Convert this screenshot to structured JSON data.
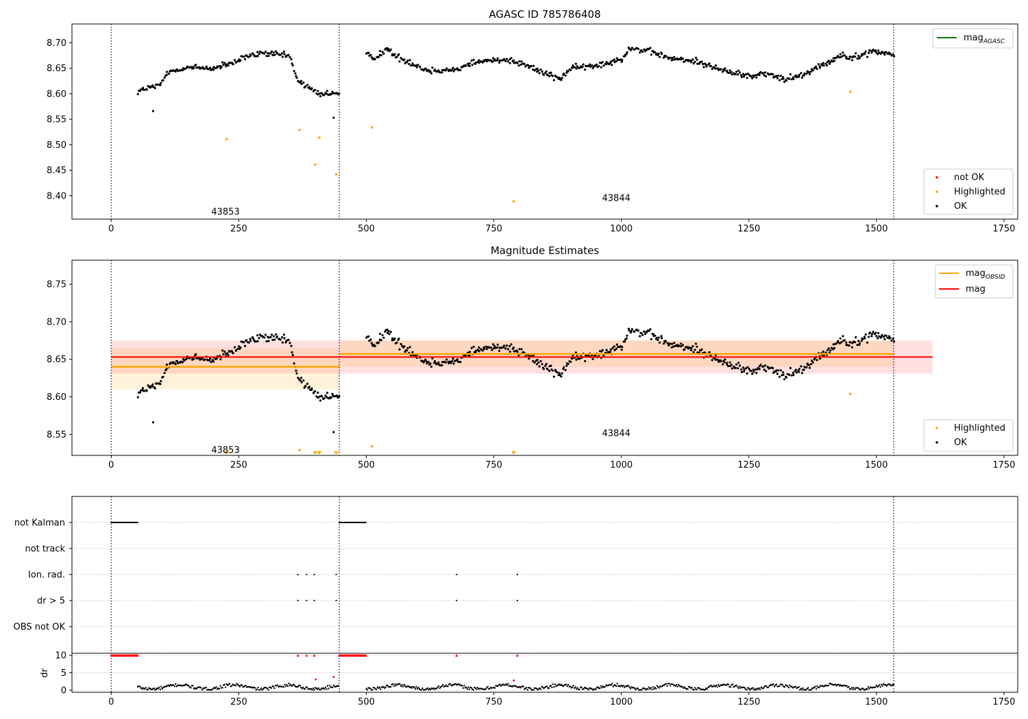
{
  "colors": {
    "ok": "#000000",
    "not_ok": "#ff0000",
    "highlighted": "#ffa500",
    "agasc_line": "#008000",
    "obsid_line": "#ffa500",
    "mag_line": "#ff0000",
    "obs_boundary": "#800080",
    "obsid_band": "#ffa500",
    "mag_band": "#ff0000",
    "flag_grid": "#b0b0b0"
  },
  "chart_data": [
    {
      "type": "scatter",
      "title": "AGASC ID 785786408",
      "xlim": [
        -77,
        1777
      ],
      "ylim": [
        8.354,
        8.737
      ],
      "xticks": [
        0,
        250,
        500,
        750,
        1000,
        1250,
        1500,
        1750
      ],
      "yticks": [
        8.4,
        8.45,
        8.5,
        8.55,
        8.6,
        8.65,
        8.7
      ],
      "ytick_labels": [
        "8.40",
        "8.45",
        "8.50",
        "8.55",
        "8.60",
        "8.65",
        "8.70"
      ],
      "obs_boundaries": [
        0,
        447,
        1534
      ],
      "obs_labels": [
        {
          "text": "43853",
          "x": 224,
          "y": 8.368
        },
        {
          "text": "43844",
          "x": 990,
          "y": 8.395
        }
      ],
      "legend_lines": [
        {
          "label": "mag",
          "sub": "AGASC",
          "color_key": "agasc_line"
        }
      ],
      "legend_markers": [
        {
          "label": "not OK",
          "color_key": "not_ok"
        },
        {
          "label": "Highlighted",
          "color_key": "highlighted"
        },
        {
          "label": "OK",
          "color_key": "ok"
        }
      ],
      "highlighted_points": [
        [
          226,
          8.511
        ],
        [
          369,
          8.529
        ],
        [
          400,
          8.461
        ],
        [
          408,
          8.514
        ],
        [
          441,
          8.442
        ],
        [
          511,
          8.534
        ],
        [
          789,
          8.389
        ],
        [
          1449,
          8.604
        ]
      ],
      "outlier_points": [
        [
          82,
          8.566
        ],
        [
          436,
          8.553
        ]
      ],
      "ok_series": [
        {
          "x0": 52,
          "x1": 447,
          "step": 2,
          "noise": 0.006,
          "knots": [
            [
              52,
              8.605
            ],
            [
              75,
              8.612
            ],
            [
              95,
              8.615
            ],
            [
              110,
              8.642
            ],
            [
              150,
              8.652
            ],
            [
              200,
              8.65
            ],
            [
              240,
              8.66
            ],
            [
              262,
              8.672
            ],
            [
              300,
              8.68
            ],
            [
              350,
              8.674
            ],
            [
              362,
              8.632
            ],
            [
              385,
              8.612
            ],
            [
              410,
              8.6
            ],
            [
              447,
              8.6
            ]
          ]
        },
        {
          "x0": 500,
          "x1": 1534,
          "step": 2,
          "noise": 0.006,
          "knots": [
            [
              500,
              8.678
            ],
            [
              515,
              8.67
            ],
            [
              540,
              8.688
            ],
            [
              560,
              8.672
            ],
            [
              590,
              8.66
            ],
            [
              620,
              8.645
            ],
            [
              680,
              8.648
            ],
            [
              710,
              8.662
            ],
            [
              770,
              8.668
            ],
            [
              800,
              8.662
            ],
            [
              850,
              8.64
            ],
            [
              880,
              8.63
            ],
            [
              900,
              8.65
            ],
            [
              950,
              8.655
            ],
            [
              1000,
              8.668
            ],
            [
              1015,
              8.69
            ],
            [
              1060,
              8.682
            ],
            [
              1100,
              8.668
            ],
            [
              1150,
              8.664
            ],
            [
              1200,
              8.645
            ],
            [
              1250,
              8.635
            ],
            [
              1280,
              8.64
            ],
            [
              1320,
              8.628
            ],
            [
              1360,
              8.64
            ],
            [
              1400,
              8.66
            ],
            [
              1430,
              8.675
            ],
            [
              1470,
              8.672
            ],
            [
              1490,
              8.685
            ],
            [
              1534,
              8.675
            ]
          ]
        }
      ]
    },
    {
      "type": "scatter",
      "title": "Magnitude Estimates",
      "xlim": [
        -77,
        1777
      ],
      "ylim": [
        8.522,
        8.782
      ],
      "xticks": [
        0,
        250,
        500,
        750,
        1000,
        1250,
        1500,
        1750
      ],
      "yticks": [
        8.55,
        8.6,
        8.65,
        8.7,
        8.75
      ],
      "ytick_labels": [
        "8.55",
        "8.60",
        "8.65",
        "8.70",
        "8.75"
      ],
      "obs_boundaries": [
        0,
        447,
        1534
      ],
      "obs_labels": [
        {
          "text": "43853",
          "x": 224,
          "y": 8.529
        },
        {
          "text": "43844",
          "x": 990,
          "y": 8.551
        }
      ],
      "legend_lines": [
        {
          "label": "mag",
          "sub": "OBSID",
          "color_key": "obsid_line"
        },
        {
          "label": "mag",
          "sub": "",
          "color_key": "mag_line"
        }
      ],
      "legend_markers": [
        {
          "label": "Highlighted",
          "color_key": "highlighted"
        },
        {
          "label": "OK",
          "color_key": "ok"
        }
      ],
      "obsid_mag": [
        {
          "x0": 0,
          "x1": 447,
          "mag": 8.64,
          "lo": 8.61,
          "hi": 8.665
        },
        {
          "x0": 447,
          "x1": 1534,
          "mag": 8.657,
          "lo": 8.64,
          "hi": 8.675
        }
      ],
      "mag": {
        "x0": 0,
        "x1": 1610,
        "mag": 8.653,
        "lo": 8.631,
        "hi": 8.675
      },
      "highlighted_points": [
        [
          369,
          8.529
        ],
        [
          511,
          8.534
        ],
        [
          1449,
          8.604
        ]
      ],
      "offscale_points": [
        226,
        400,
        408,
        441,
        789
      ],
      "outlier_points": [
        [
          82,
          8.566
        ],
        [
          436,
          8.553
        ]
      ],
      "ok_series": [
        {
          "x0": 52,
          "x1": 447,
          "step": 2,
          "noise": 0.006,
          "knots": [
            [
              52,
              8.605
            ],
            [
              75,
              8.612
            ],
            [
              95,
              8.615
            ],
            [
              110,
              8.642
            ],
            [
              150,
              8.652
            ],
            [
              200,
              8.65
            ],
            [
              240,
              8.66
            ],
            [
              262,
              8.672
            ],
            [
              300,
              8.68
            ],
            [
              350,
              8.674
            ],
            [
              362,
              8.632
            ],
            [
              385,
              8.612
            ],
            [
              410,
              8.6
            ],
            [
              447,
              8.6
            ]
          ]
        },
        {
          "x0": 500,
          "x1": 1534,
          "step": 2,
          "noise": 0.006,
          "knots": [
            [
              500,
              8.678
            ],
            [
              515,
              8.67
            ],
            [
              540,
              8.688
            ],
            [
              560,
              8.672
            ],
            [
              590,
              8.66
            ],
            [
              620,
              8.645
            ],
            [
              680,
              8.648
            ],
            [
              710,
              8.662
            ],
            [
              770,
              8.668
            ],
            [
              800,
              8.662
            ],
            [
              850,
              8.64
            ],
            [
              880,
              8.63
            ],
            [
              900,
              8.65
            ],
            [
              950,
              8.655
            ],
            [
              1000,
              8.668
            ],
            [
              1015,
              8.69
            ],
            [
              1060,
              8.682
            ],
            [
              1100,
              8.668
            ],
            [
              1150,
              8.664
            ],
            [
              1200,
              8.645
            ],
            [
              1250,
              8.635
            ],
            [
              1280,
              8.64
            ],
            [
              1320,
              8.628
            ],
            [
              1360,
              8.64
            ],
            [
              1400,
              8.66
            ],
            [
              1430,
              8.675
            ],
            [
              1470,
              8.672
            ],
            [
              1490,
              8.685
            ],
            [
              1534,
              8.675
            ]
          ]
        }
      ]
    },
    {
      "type": "scatter",
      "title": "",
      "xlim": [
        -77,
        1777
      ],
      "xticks": [
        0,
        250,
        500,
        750,
        1000,
        1250,
        1500,
        1750
      ],
      "obs_boundaries": [
        0,
        447,
        1534
      ],
      "flag_labels": [
        "not Kalman",
        "not track",
        "Ion. rad.",
        "dr > 5",
        "OBS not OK"
      ],
      "flags": {
        "not Kalman": {
          "ranges": [
            [
              0,
              52
            ],
            [
              447,
              500
            ]
          ],
          "points": []
        },
        "not track": {
          "ranges": [],
          "points": []
        },
        "Ion. rad.": {
          "ranges": [],
          "points": [
            366,
            383,
            398,
            441,
            677,
            796
          ]
        },
        "dr > 5": {
          "ranges": [],
          "points": [
            366,
            383,
            398,
            441,
            677,
            796
          ]
        },
        "OBS not OK": {
          "ranges": [],
          "points": []
        }
      },
      "dr": {
        "ylabel": "dr",
        "ylim": [
          -0.6,
          10.6
        ],
        "yticks": [
          0,
          5,
          10
        ],
        "ytick_labels": [
          "0",
          "5",
          "10"
        ],
        "capped_value": 10,
        "capped_ranges": [
          [
            0,
            52
          ],
          [
            447,
            500
          ]
        ],
        "capped_points": [
          366,
          383,
          398,
          677,
          796
        ],
        "scattered_points": [
          [
            401,
            3.1
          ],
          [
            436,
            3.8
          ],
          [
            789,
            2.8
          ]
        ],
        "gaps": [
          [
            52,
            447
          ],
          [
            500,
            1534
          ]
        ]
      }
    }
  ]
}
